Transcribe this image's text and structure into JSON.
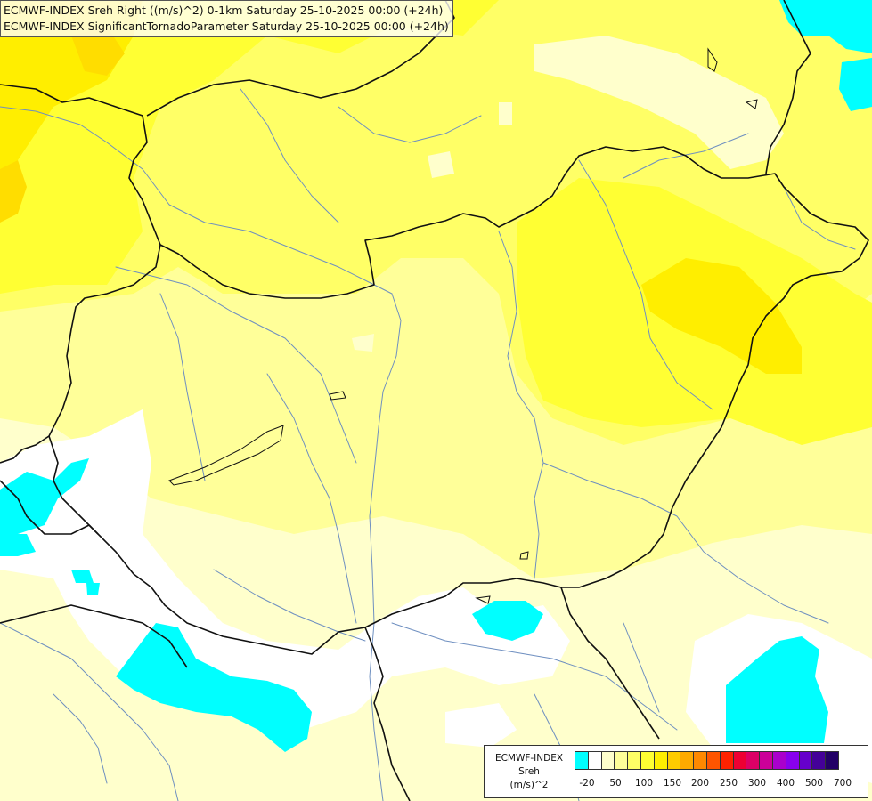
{
  "header": {
    "title_line1": "ECMWF-INDEX Sreh Right ((m/s)^2) 0-1km Saturday 25-10-2025 00:00 (+24h)",
    "title_line2": "ECMWF-INDEX SignificantTornadoParameter Saturday 25-10-2025 00:00 (+24h)"
  },
  "legend": {
    "line1": "ECMWF-INDEX",
    "line2": "Sreh",
    "line3": "(m/s)^2",
    "colors": [
      "#00ffff",
      "#ffffff",
      "#ffffcc",
      "#ffff99",
      "#ffff66",
      "#ffff33",
      "#ffee00",
      "#ffcc00",
      "#ffaa00",
      "#ff8800",
      "#ff5500",
      "#ff2200",
      "#ee0033",
      "#dd0066",
      "#cc0099",
      "#aa00cc",
      "#8800ee",
      "#6600cc",
      "#440099",
      "#220066"
    ],
    "tick_labels": [
      "-20",
      "50",
      "100",
      "150",
      "200",
      "250",
      "300",
      "400",
      "500",
      "700"
    ]
  }
}
